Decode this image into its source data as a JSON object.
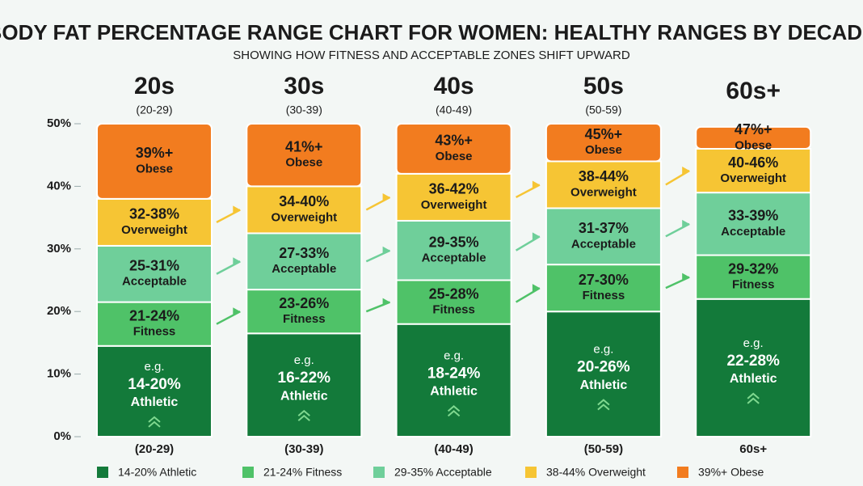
{
  "chart_data": {
    "type": "stacked-column",
    "title": "BODY FAT PERCENTAGE RANGE CHART FOR WOMEN: HEALTHY RANGES BY DECADE",
    "subtitle": "SHOWING HOW FITNESS AND ACCEPTABLE ZONES SHIFT UPWARD",
    "categories": [
      "(20-29)",
      "(30-39)",
      "(40-49)",
      "(50-59)",
      "60s+"
    ],
    "headers": [
      {
        "title": "20s",
        "sub": "(20-29)"
      },
      {
        "title": "30s",
        "sub": "(30-39)"
      },
      {
        "title": "40s",
        "sub": "(40-49)"
      },
      {
        "title": "50s",
        "sub": "(50-59)"
      },
      {
        "title": "60s+",
        "sub": null
      }
    ],
    "ylim": [
      0,
      50
    ],
    "yticks": [
      {
        "value": 0,
        "label": "0%"
      },
      {
        "value": 10,
        "label": "10%"
      },
      {
        "value": 20,
        "label": "20%"
      },
      {
        "value": 30,
        "label": "30%"
      },
      {
        "value": 40,
        "label": "40%"
      },
      {
        "value": 50,
        "label": "50%"
      }
    ],
    "series": [
      {
        "name": "14-20% Athletic",
        "zone": "Athletic",
        "prefix": "e.g.",
        "color": "#137a3a",
        "values": [
          14.5,
          16.5,
          18,
          20,
          22
        ],
        "ranges": [
          "14-20%",
          "16-22%",
          "18-24%",
          "20-26%",
          "22-28%"
        ]
      },
      {
        "name": "21-24% Fitness",
        "zone": "Fitness",
        "color": "#4fc268",
        "values": [
          7,
          7,
          7,
          7.5,
          7
        ],
        "ranges": [
          "21-24%",
          "23-26%",
          "25-28%",
          "27-30%",
          "29-32%"
        ]
      },
      {
        "name": "29-35% Acceptable",
        "zone": "Acceptable",
        "color": "#6fcf9a",
        "values": [
          9,
          9,
          9.5,
          9,
          10
        ],
        "ranges": [
          "25-31%",
          "27-33%",
          "29-35%",
          "31-37%",
          "33-39%"
        ]
      },
      {
        "name": "38-44% Overweight",
        "zone": "Overweight",
        "color": "#f6c534",
        "values": [
          7.5,
          7.5,
          7.5,
          7.5,
          7
        ],
        "ranges": [
          "32-38%",
          "34-40%",
          "36-42%",
          "38-44%",
          "40-46%"
        ]
      },
      {
        "name": "39%+ Obese",
        "zone": "Obese",
        "color": "#f27c1f",
        "values": [
          12,
          10,
          8,
          6,
          3.5
        ],
        "ranges": [
          "39%+",
          "41%+",
          "43%+",
          "45%+",
          "47%+"
        ]
      }
    ]
  }
}
